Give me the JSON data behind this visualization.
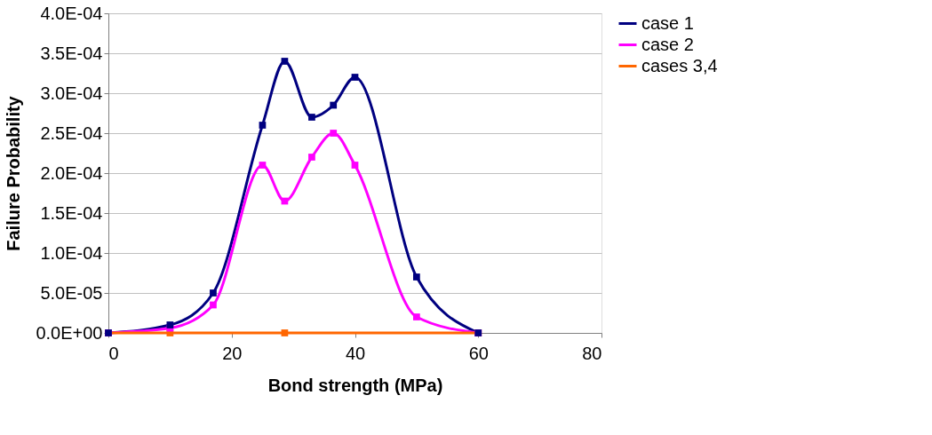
{
  "chart_data": {
    "type": "line",
    "xlabel": "Bond strength (MPa)",
    "ylabel": "Failure Probability",
    "xlim": [
      0,
      80
    ],
    "xticks": [
      0,
      20,
      40,
      60,
      80
    ],
    "ylim": [
      0,
      0.0004
    ],
    "yticks": [
      {
        "value": 0,
        "label": "0.0E+00"
      },
      {
        "value": 5e-05,
        "label": "5.0E-05"
      },
      {
        "value": 0.0001,
        "label": "1.0E-04"
      },
      {
        "value": 0.00015,
        "label": "1.5E-04"
      },
      {
        "value": 0.0002,
        "label": "2.0E-04"
      },
      {
        "value": 0.00025,
        "label": "2.5E-04"
      },
      {
        "value": 0.0003,
        "label": "3.0E-04"
      },
      {
        "value": 0.00035,
        "label": "3.5E-04"
      },
      {
        "value": 0.0004,
        "label": "4.0E-04"
      }
    ],
    "grid": "y",
    "legend": "right",
    "marker": "square",
    "line_style": "solid",
    "series": [
      {
        "name": "case 1",
        "color": "#000080",
        "x": [
          0,
          10,
          17,
          25,
          28.6,
          33,
          36.5,
          40,
          50,
          60
        ],
        "values": [
          0,
          1e-05,
          5e-05,
          0.00026,
          0.00034,
          0.00027,
          0.000285,
          0.00032,
          7e-05,
          0
        ]
      },
      {
        "name": "case 2",
        "color": "#ff00ff",
        "x": [
          0,
          10,
          17,
          25,
          28.6,
          33,
          36.5,
          40,
          50,
          60
        ],
        "values": [
          0,
          6e-06,
          3.5e-05,
          0.00021,
          0.000165,
          0.00022,
          0.00025,
          0.00021,
          2e-05,
          0
        ]
      },
      {
        "name": "cases 3,4",
        "color": "#ff6600",
        "x": [
          0,
          10,
          28.6,
          60
        ],
        "values": [
          0,
          0,
          0,
          0
        ]
      }
    ]
  }
}
